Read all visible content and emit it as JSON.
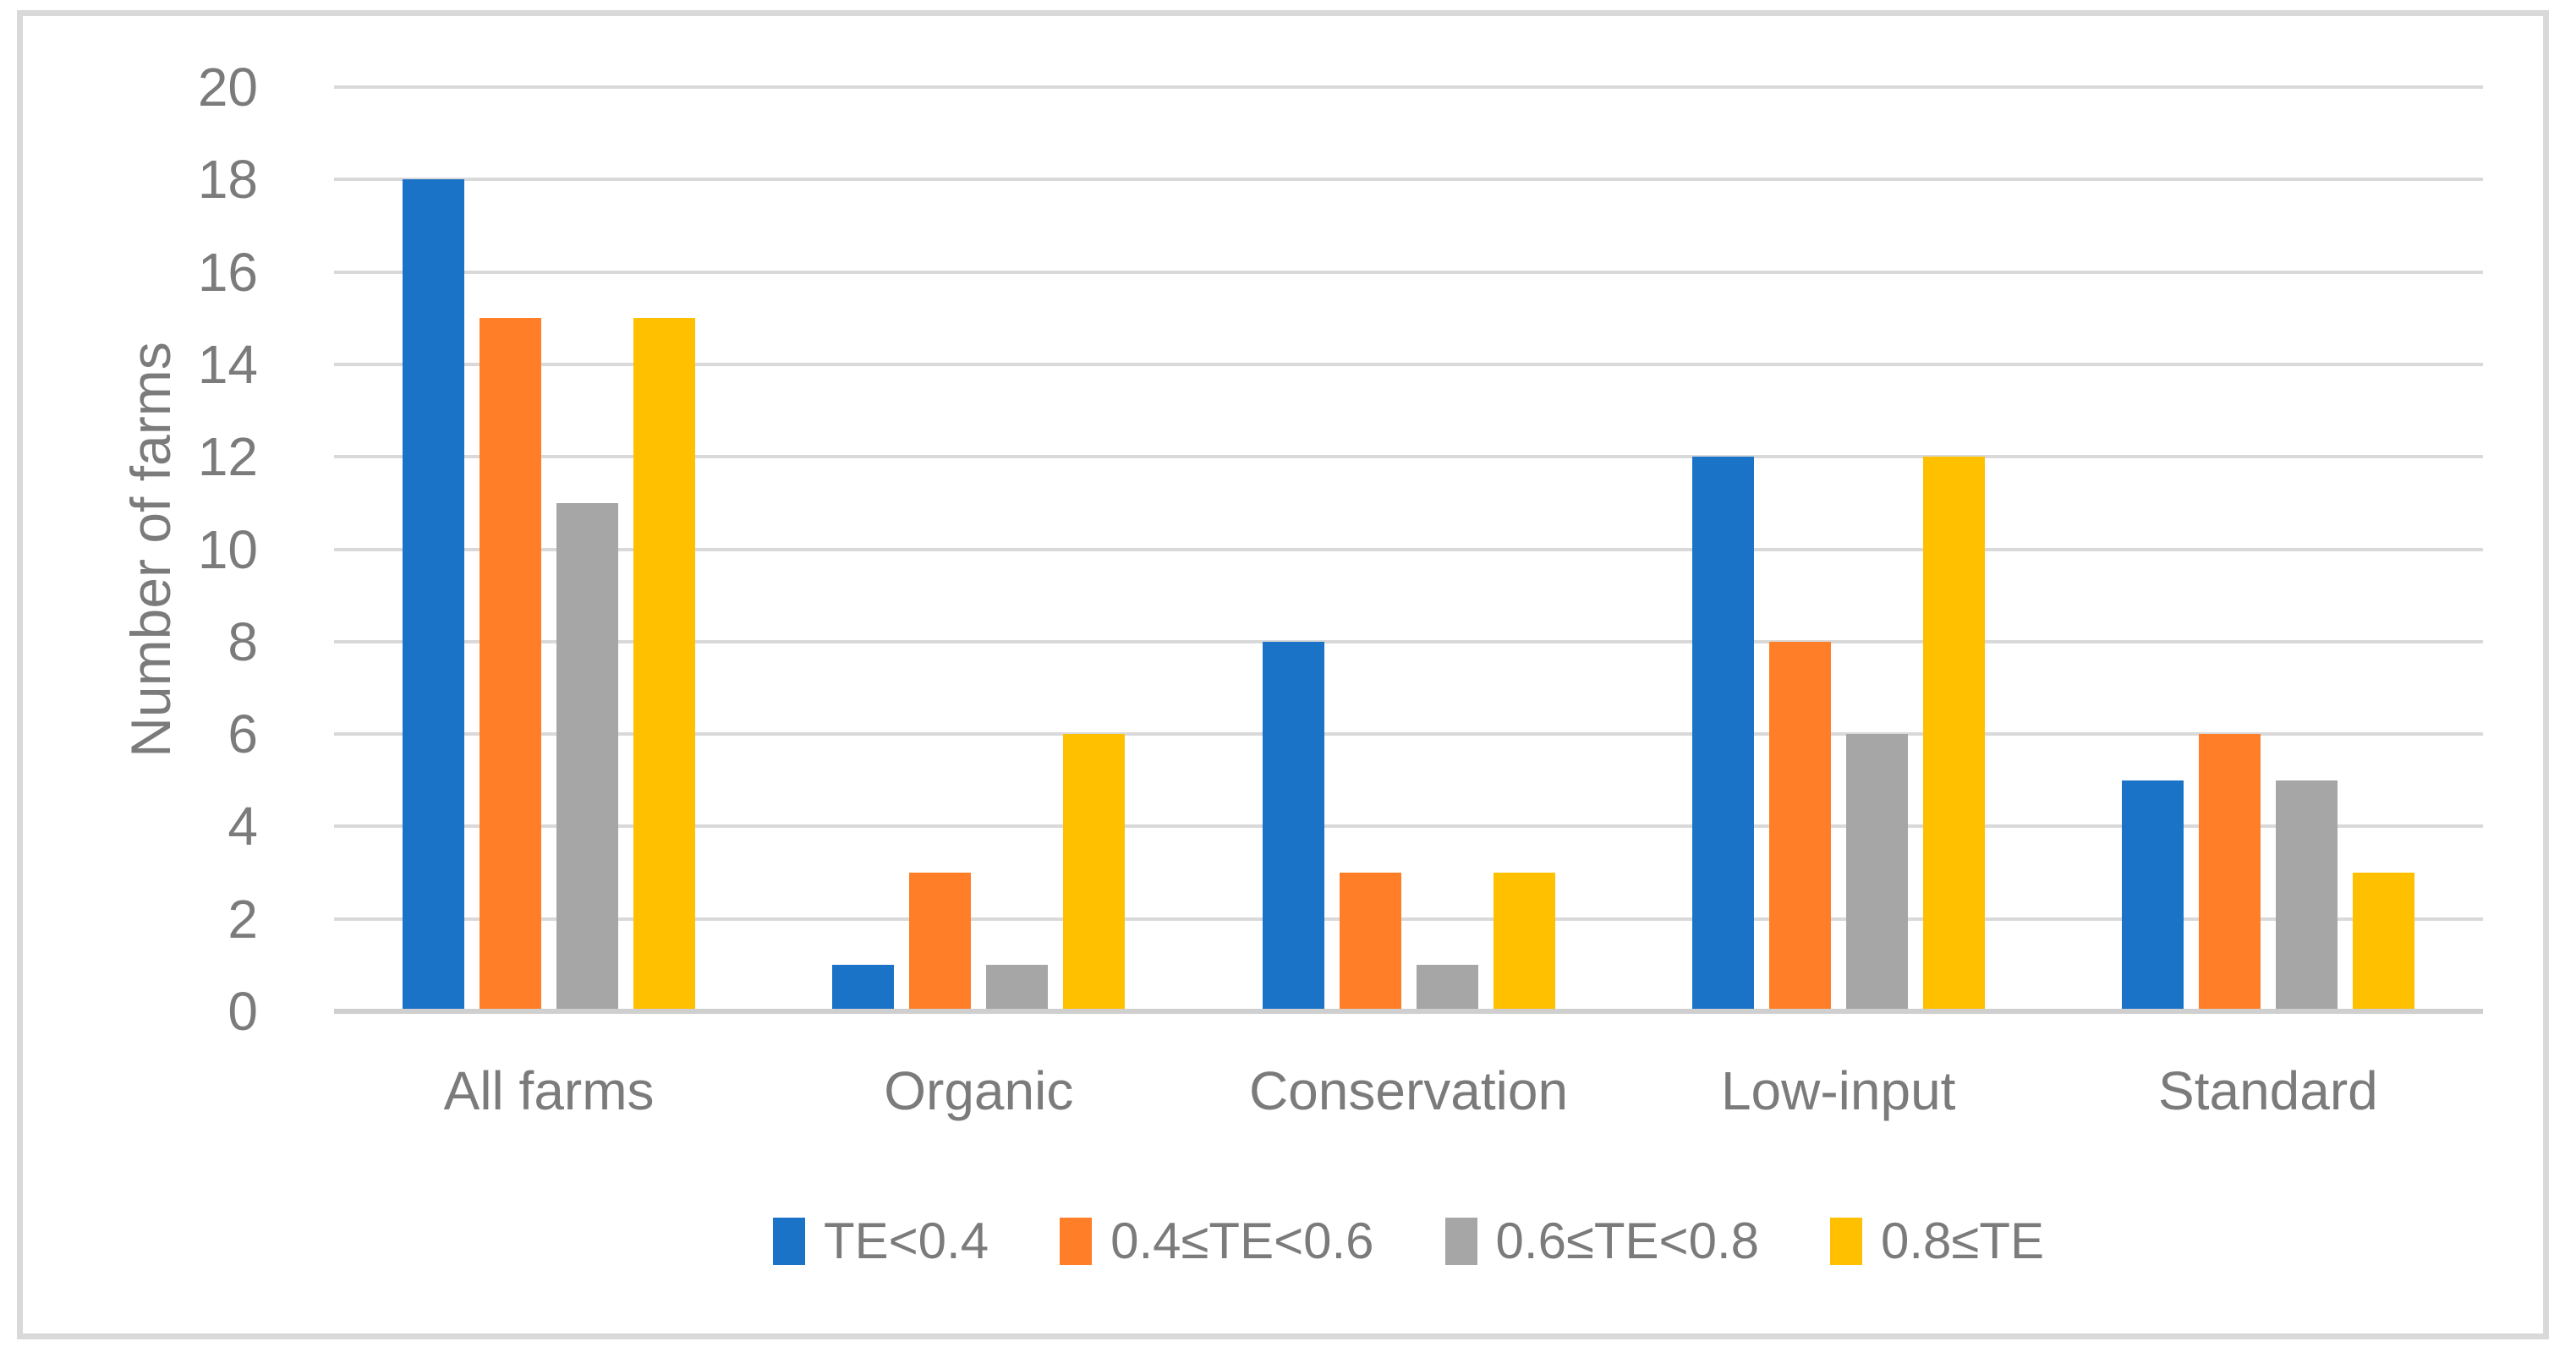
{
  "figure": {
    "background_color": "#FFFFFF",
    "frame_color": "#D9D9D9",
    "text_color": "#7B7B7B",
    "gridline_color": "#D9D9D9",
    "axis_line_color": "#CFCFCF"
  },
  "chart_data": {
    "type": "bar",
    "title": "",
    "xlabel": "",
    "ylabel": "Number of farms",
    "categories": [
      "All farms",
      "Organic",
      "Conservation",
      "Low-input",
      "Standard"
    ],
    "series": [
      {
        "name": "TE<0.4",
        "color": "#1B73C8",
        "values": [
          18,
          1,
          8,
          12,
          5
        ]
      },
      {
        "name": "0.4≤TE<0.6",
        "color": "#FF7E27",
        "values": [
          15,
          3,
          3,
          8,
          6
        ]
      },
      {
        "name": "0.6≤TE<0.8",
        "color": "#A6A6A6",
        "values": [
          11,
          1,
          1,
          6,
          5
        ]
      },
      {
        "name": "0.8≤TE",
        "color": "#FFC000",
        "values": [
          15,
          6,
          3,
          12,
          3
        ]
      }
    ],
    "ylim": [
      0,
      20
    ],
    "ytick_step": 2,
    "yticks": [
      0,
      2,
      4,
      6,
      8,
      10,
      12,
      14,
      16,
      18,
      20
    ],
    "grid": true,
    "legend_position": "bottom"
  }
}
